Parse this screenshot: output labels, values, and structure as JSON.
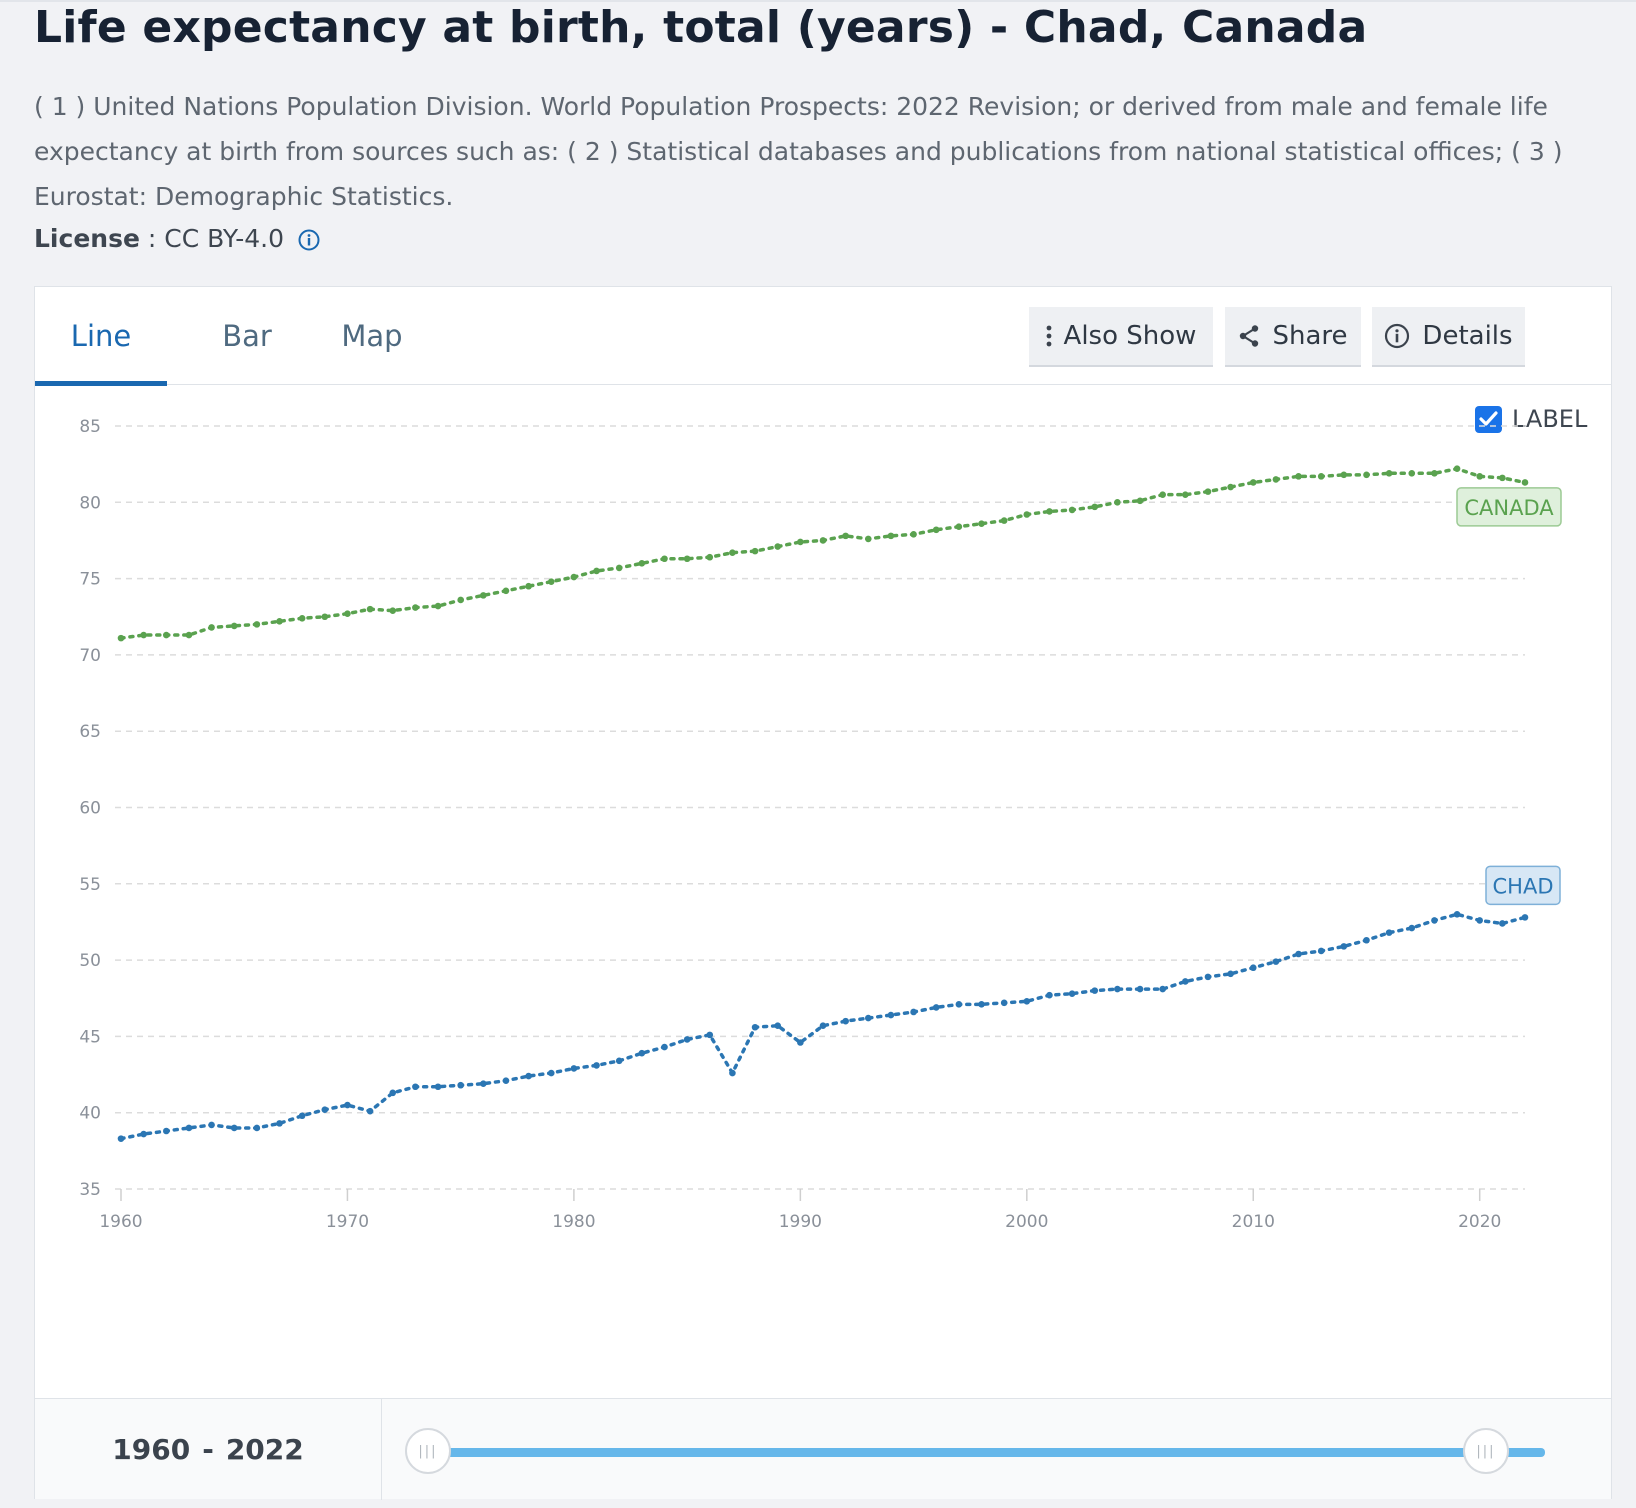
{
  "header": {
    "title": "Life expectancy at birth, total (years) - Chad, Canada",
    "source": "( 1 ) United Nations Population Division. World Population Prospects: 2022 Revision; or derived from male and female life expectancy at birth from sources such as: ( 2 ) Statistical databases and publications from national statistical offices; ( 3 ) Eurostat: Demographic Statistics.",
    "license_label": "License",
    "license_sep": " : ",
    "license_value": "CC BY-4.0"
  },
  "tabs": [
    {
      "label": "Line"
    },
    {
      "label": "Bar"
    },
    {
      "label": "Map"
    }
  ],
  "toolbar": {
    "also_show": "Also Show",
    "share": "Share",
    "details": "Details"
  },
  "label_toggle": {
    "label": "LABEL",
    "checked": true
  },
  "colors": {
    "canada": "#5aa24f",
    "chad": "#2b76b3",
    "accent": "#1a68b0"
  },
  "chart_data": {
    "type": "line",
    "title": "Life expectancy at birth, total (years) - Chad, Canada",
    "xlabel": "",
    "ylabel": "",
    "xlim": [
      1960,
      2022
    ],
    "ylim": [
      35,
      85
    ],
    "yticks": [
      35,
      40,
      45,
      50,
      55,
      60,
      65,
      70,
      75,
      80,
      85
    ],
    "xticks": [
      1960,
      1970,
      1980,
      1990,
      2000,
      2010,
      2020
    ],
    "grid": true,
    "series": [
      {
        "name": "Canada",
        "label": "CANADA",
        "x": [
          1960,
          1961,
          1962,
          1963,
          1964,
          1965,
          1966,
          1967,
          1968,
          1969,
          1970,
          1971,
          1972,
          1973,
          1974,
          1975,
          1976,
          1977,
          1978,
          1979,
          1980,
          1981,
          1982,
          1983,
          1984,
          1985,
          1986,
          1987,
          1988,
          1989,
          1990,
          1991,
          1992,
          1993,
          1994,
          1995,
          1996,
          1997,
          1998,
          1999,
          2000,
          2001,
          2002,
          2003,
          2004,
          2005,
          2006,
          2007,
          2008,
          2009,
          2010,
          2011,
          2012,
          2013,
          2014,
          2015,
          2016,
          2017,
          2018,
          2019,
          2020,
          2021,
          2022
        ],
        "values": [
          71.1,
          71.3,
          71.3,
          71.3,
          71.8,
          71.9,
          72.0,
          72.2,
          72.4,
          72.5,
          72.7,
          73.0,
          72.9,
          73.1,
          73.2,
          73.6,
          73.9,
          74.2,
          74.5,
          74.8,
          75.1,
          75.5,
          75.7,
          76.0,
          76.3,
          76.3,
          76.4,
          76.7,
          76.8,
          77.1,
          77.4,
          77.5,
          77.8,
          77.6,
          77.8,
          77.9,
          78.2,
          78.4,
          78.6,
          78.8,
          79.2,
          79.4,
          79.5,
          79.7,
          80.0,
          80.1,
          80.5,
          80.5,
          80.7,
          81.0,
          81.3,
          81.5,
          81.7,
          81.7,
          81.8,
          81.8,
          81.9,
          81.9,
          81.9,
          82.2,
          81.7,
          81.6,
          81.3
        ]
      },
      {
        "name": "Chad",
        "label": "CHAD",
        "x": [
          1960,
          1961,
          1962,
          1963,
          1964,
          1965,
          1966,
          1967,
          1968,
          1969,
          1970,
          1971,
          1972,
          1973,
          1974,
          1975,
          1976,
          1977,
          1978,
          1979,
          1980,
          1981,
          1982,
          1983,
          1984,
          1985,
          1986,
          1987,
          1988,
          1989,
          1990,
          1991,
          1992,
          1993,
          1994,
          1995,
          1996,
          1997,
          1998,
          1999,
          2000,
          2001,
          2002,
          2003,
          2004,
          2005,
          2006,
          2007,
          2008,
          2009,
          2010,
          2011,
          2012,
          2013,
          2014,
          2015,
          2016,
          2017,
          2018,
          2019,
          2020,
          2021,
          2022
        ],
        "values": [
          38.3,
          38.6,
          38.8,
          39.0,
          39.2,
          39.0,
          39.0,
          39.3,
          39.8,
          40.2,
          40.5,
          40.1,
          41.3,
          41.7,
          41.7,
          41.8,
          41.9,
          42.1,
          42.4,
          42.6,
          42.9,
          43.1,
          43.4,
          43.9,
          44.3,
          44.8,
          45.1,
          42.6,
          45.6,
          45.7,
          44.6,
          45.7,
          46.0,
          46.2,
          46.4,
          46.6,
          46.9,
          47.1,
          47.1,
          47.2,
          47.3,
          47.7,
          47.8,
          48.0,
          48.1,
          48.1,
          48.1,
          48.6,
          48.9,
          49.1,
          49.5,
          49.9,
          50.4,
          50.6,
          50.9,
          51.3,
          51.8,
          52.1,
          52.6,
          53.0,
          52.6,
          52.4,
          52.8
        ]
      }
    ]
  },
  "footer": {
    "range_start": "1960",
    "range_sep": "-",
    "range_end": "2022"
  }
}
